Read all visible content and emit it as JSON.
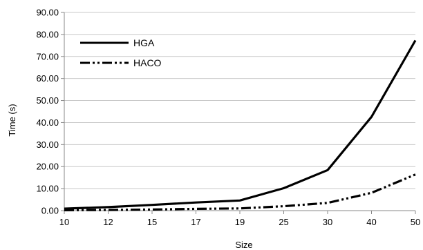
{
  "chart_data": {
    "type": "line",
    "title": "",
    "xlabel": "Size",
    "ylabel": "Time (s)",
    "categories": [
      "10",
      "12",
      "15",
      "17",
      "19",
      "25",
      "30",
      "40",
      "50"
    ],
    "ylim": [
      0,
      90
    ],
    "y_ticks": [
      "0.00",
      "10.00",
      "20.00",
      "30.00",
      "40.00",
      "50.00",
      "60.00",
      "70.00",
      "80.00",
      "90.00"
    ],
    "grid": true,
    "legend_position": "top-left",
    "series": [
      {
        "name": "HGA",
        "line_style": "solid",
        "color": "#000000",
        "values": [
          0.9,
          1.6,
          2.6,
          3.7,
          4.6,
          10.2,
          18.4,
          42.6,
          77.3
        ]
      },
      {
        "name": "HACO",
        "line_style": "dash-dot-dot",
        "color": "#000000",
        "values": [
          0.2,
          0.3,
          0.5,
          0.8,
          1.0,
          2.0,
          3.5,
          8.1,
          16.4
        ]
      }
    ]
  }
}
